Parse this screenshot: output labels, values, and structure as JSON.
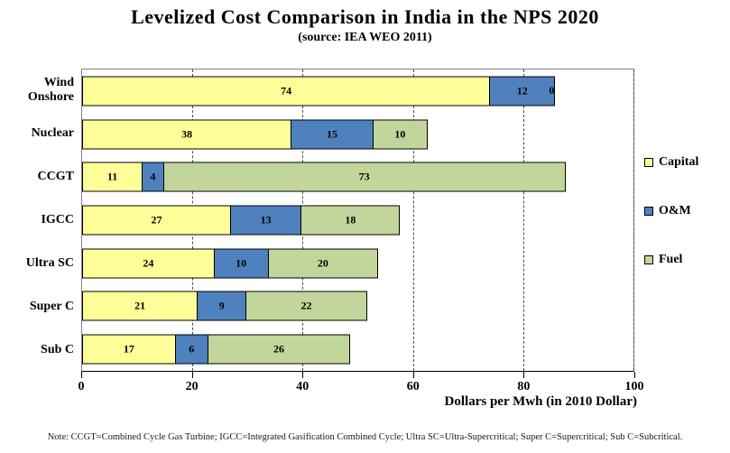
{
  "chart_data": {
    "type": "bar",
    "orientation": "horizontal",
    "stacked": true,
    "title": "Levelized Cost Comparison in India in the NPS 2020",
    "subtitle": "(source: IEA WEO 2011)",
    "categories": [
      "Wind Onshore",
      "Nuclear",
      "CCGT",
      "IGCC",
      "Ultra SC",
      "Super C",
      "Sub C"
    ],
    "series": [
      {
        "name": "Capital",
        "color": "#FFFF99",
        "values": [
          74,
          38,
          11,
          27,
          24,
          21,
          17
        ]
      },
      {
        "name": "O&M",
        "color": "#4E81BD",
        "values": [
          12,
          15,
          4,
          13,
          10,
          9,
          6
        ]
      },
      {
        "name": "Fuel",
        "color": "#C2D69B",
        "values": [
          0,
          10,
          73,
          18,
          20,
          22,
          26
        ]
      }
    ],
    "totals": [
      86,
      63,
      88,
      58,
      54,
      52,
      49
    ],
    "xlabel": "Dollars per Mwh (in 2010 Dollar)",
    "xlim": [
      0,
      100
    ],
    "xticks": [
      0,
      20,
      40,
      60,
      80,
      100
    ],
    "grid": "dashed-vertical",
    "legend_position": "right",
    "note": "Note: CCGT=Combined  Cycle Gas Turbine; IGCC=Integrated  Gasification  Combined  Cycle; Ultra  SC=Ultra-Supercritical;   Super  C=Supercritical;   Sub C=Subcritical."
  }
}
